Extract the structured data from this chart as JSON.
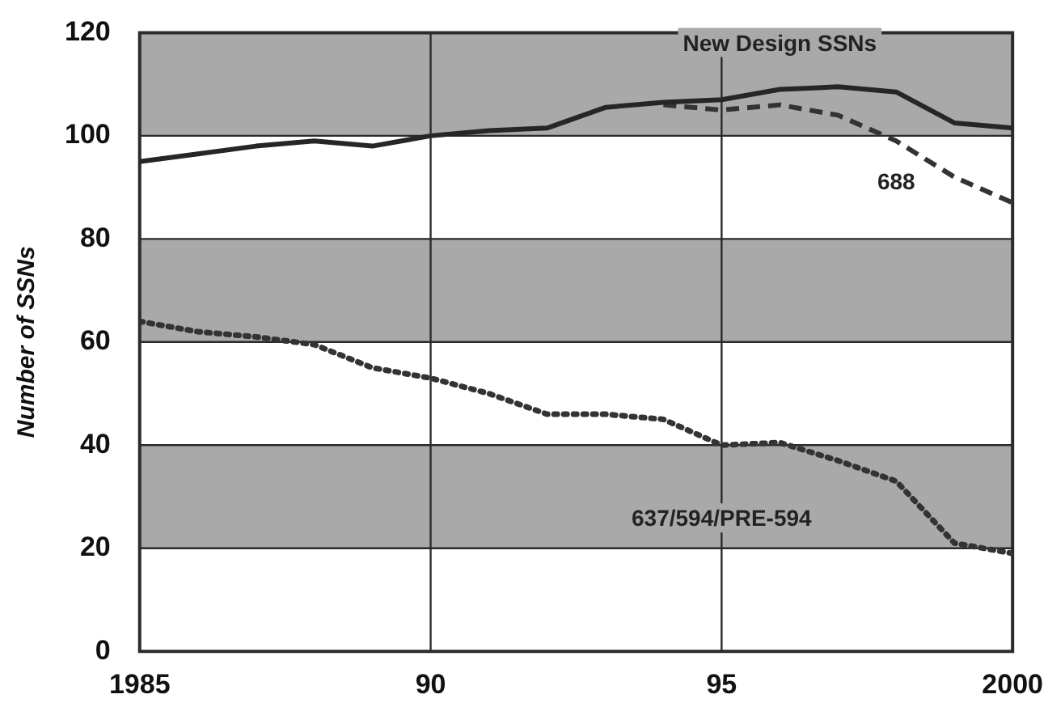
{
  "chart_data": {
    "type": "line",
    "ylabel": "Number of SSNs",
    "xlim": [
      1985,
      2000
    ],
    "xticks": [
      {
        "value": 1985,
        "label": "1985"
      },
      {
        "value": 1990,
        "label": "90"
      },
      {
        "value": 1995,
        "label": "95"
      },
      {
        "value": 2000,
        "label": "2000"
      }
    ],
    "ylim": [
      0,
      120
    ],
    "yticks": [
      0,
      20,
      40,
      60,
      80,
      100,
      120
    ],
    "grid": true,
    "legend": false,
    "marker": "none",
    "bands": [
      {
        "axis": "y",
        "from": 20,
        "to": 40,
        "color": "#a9a9a9"
      },
      {
        "axis": "y",
        "from": 60,
        "to": 80,
        "color": "#a9a9a9"
      },
      {
        "axis": "y",
        "from": 100,
        "to": 120,
        "color": "#a9a9a9"
      }
    ],
    "series": [
      {
        "name": "New Design SSNs",
        "color": "#262626",
        "line_style": "solid",
        "x": [
          1985,
          1986,
          1987,
          1988,
          1989,
          1990,
          1991,
          1992,
          1993,
          1994,
          1995,
          1996,
          1997,
          1998,
          1999,
          2000
        ],
        "values": [
          95,
          96.5,
          98,
          99,
          98,
          100,
          101,
          101.5,
          105.5,
          106.5,
          107,
          109,
          109.5,
          108.5,
          102.5,
          101.5
        ]
      },
      {
        "name": "688",
        "color": "#333333",
        "line_style": "dashed",
        "x": [
          1994,
          1995,
          1996,
          1997,
          1998,
          1999,
          2000
        ],
        "values": [
          106,
          105,
          106,
          104,
          99,
          92,
          87
        ]
      },
      {
        "name": "637/594/PRE-594",
        "color": "#333333",
        "line_style": "dotted",
        "x": [
          1985,
          1986,
          1987,
          1988,
          1989,
          1990,
          1991,
          1992,
          1993,
          1994,
          1995,
          1996,
          1997,
          1998,
          1999,
          2000
        ],
        "values": [
          64,
          62,
          61,
          59.5,
          55,
          53,
          50,
          46,
          46,
          45,
          40,
          40.5,
          37,
          33,
          21,
          19
        ]
      }
    ]
  }
}
